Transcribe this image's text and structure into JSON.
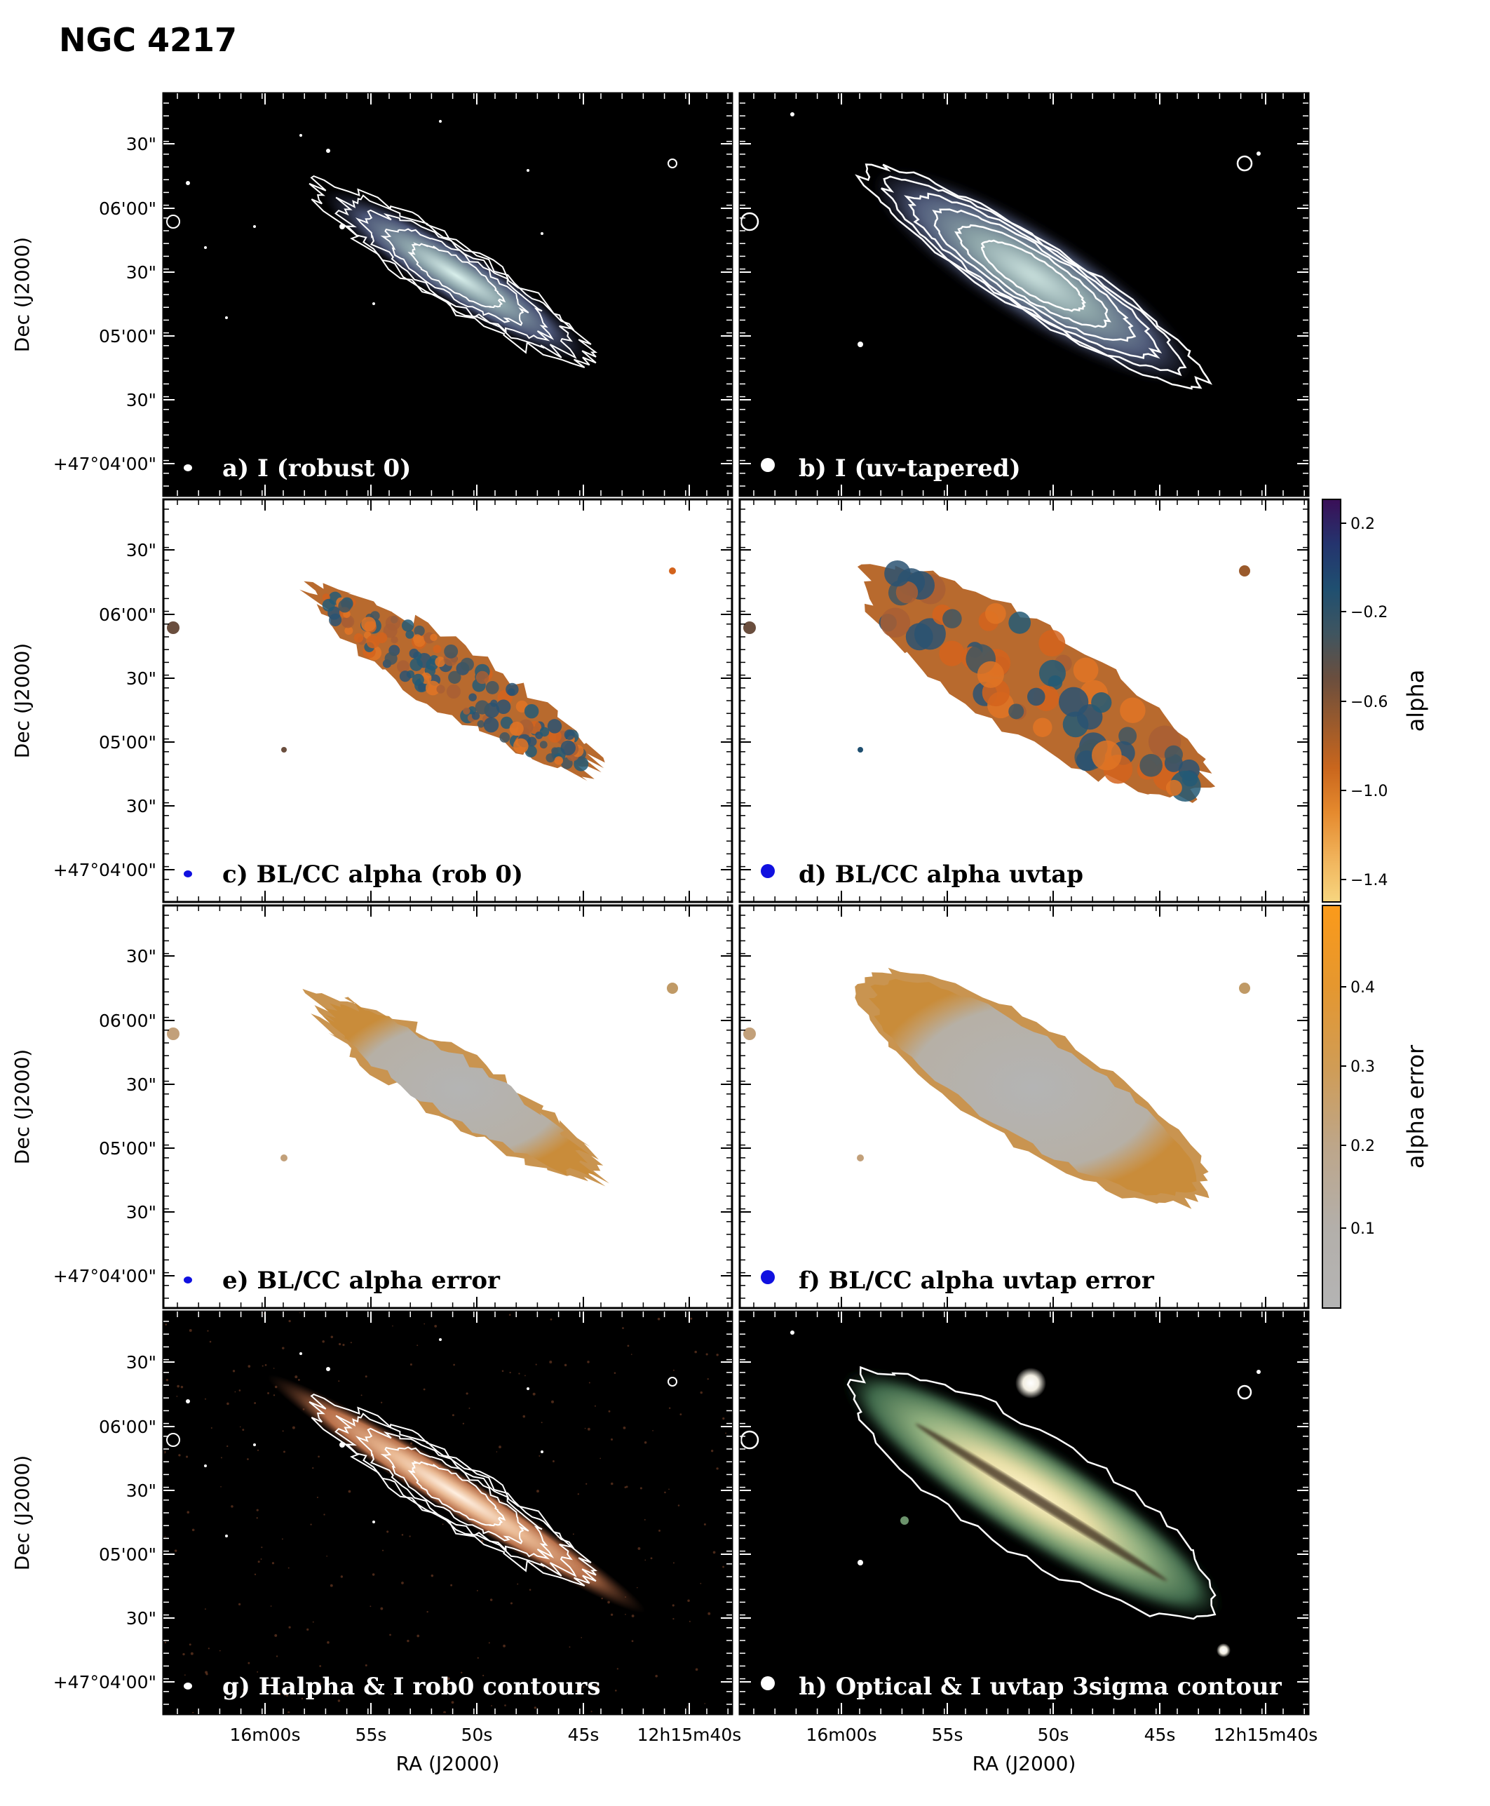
{
  "figure_title": "NGC 4217",
  "axes": {
    "ra_label": "RA (J2000)",
    "dec_label": "Dec (J2000)",
    "ra_ticks": [
      "16m00s",
      "55s",
      "50s",
      "45s",
      "12h15m40s"
    ],
    "dec_ticks": [
      "30\"",
      "06'00\"",
      "30\"",
      "05'00\"",
      "30\"",
      "+47°04'00\""
    ]
  },
  "panels": [
    {
      "id": "a",
      "label": "a) I (robust 0)",
      "style": "intensity_robust",
      "beam_color": "#ffffff",
      "beam": "small",
      "label_color": "#ffffff"
    },
    {
      "id": "b",
      "label": "b) I (uv-tapered)",
      "style": "intensity_taper",
      "beam_color": "#ffffff",
      "beam": "large",
      "label_color": "#ffffff"
    },
    {
      "id": "c",
      "label": "c) BL/CC alpha (rob 0)",
      "style": "alpha_robust",
      "beam_color": "#1010e0",
      "beam": "small",
      "label_color": "#000000"
    },
    {
      "id": "d",
      "label": "d) BL/CC alpha uvtap",
      "style": "alpha_taper",
      "beam_color": "#1010e0",
      "beam": "large",
      "label_color": "#000000"
    },
    {
      "id": "e",
      "label": "e)  BL/CC alpha error",
      "style": "error_robust",
      "beam_color": "#1010e0",
      "beam": "small",
      "label_color": "#000000"
    },
    {
      "id": "f",
      "label": "f) BL/CC alpha uvtap error",
      "style": "error_taper",
      "beam_color": "#1010e0",
      "beam": "large",
      "label_color": "#000000"
    },
    {
      "id": "g",
      "label": "g) Halpha & I rob0 contours",
      "style": "halpha",
      "beam_color": "#ffffff",
      "beam": "small",
      "label_color": "#ffffff"
    },
    {
      "id": "h",
      "label": "h) Optical & I uvtap 3sigma contour",
      "style": "optical",
      "beam_color": "#ffffff",
      "beam": "large",
      "label_color": "#ffffff"
    }
  ],
  "colorbars": {
    "alpha": {
      "title": "alpha",
      "ticks": [
        "0.2",
        "−0.2",
        "−0.6",
        "−1.0",
        "−1.4"
      ],
      "colors": [
        "#3a0f57",
        "#24346e",
        "#1f4f70",
        "#3f5560",
        "#6a4e3e",
        "#9a5a2c",
        "#c9661d",
        "#e58a2e",
        "#f0b25a",
        "#f7d680"
      ]
    },
    "alpha_error": {
      "title": "alpha error",
      "ticks": [
        "0.4",
        "0.3",
        "0.2",
        "0.1"
      ],
      "colors": [
        "#fb9a1a",
        "#e5972f",
        "#d09c55",
        "#bda68a",
        "#b3afaa",
        "#b4b4b4"
      ]
    }
  }
}
